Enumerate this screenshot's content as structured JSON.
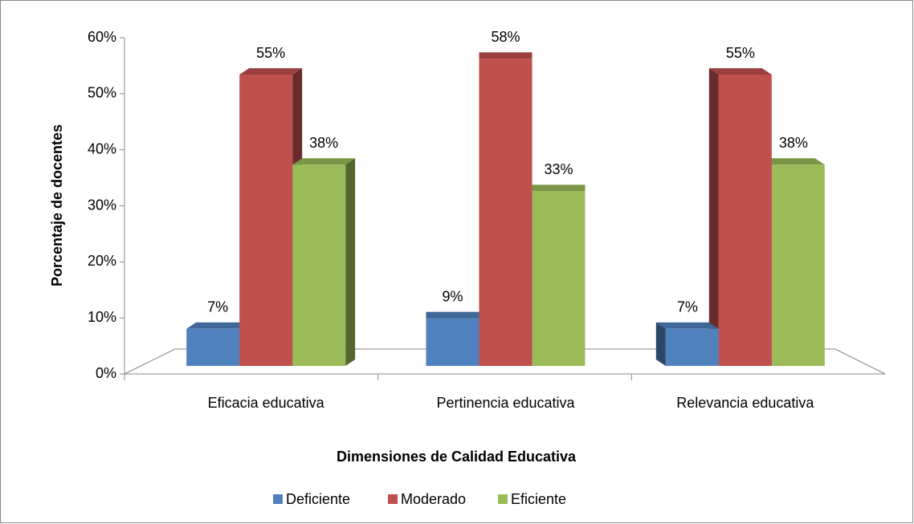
{
  "chart_data": {
    "type": "bar3d",
    "categories": [
      "Eficacia educativa",
      "Pertinencia educativa",
      "Relevancia educativa"
    ],
    "series": [
      {
        "name": "Deficiente",
        "color": "#4f81bd",
        "values": [
          7,
          9,
          7
        ],
        "value_labels": [
          "7%",
          "9%",
          "7%"
        ]
      },
      {
        "name": "Moderado",
        "color": "#c0504d",
        "values": [
          55,
          58,
          55
        ],
        "value_labels": [
          "55%",
          "58%",
          "55%"
        ]
      },
      {
        "name": "Eficiente",
        "color": "#9bbb59",
        "values": [
          38,
          33,
          38
        ],
        "value_labels": [
          "38%",
          "33%",
          "38%"
        ]
      }
    ],
    "xlabel": "Dimensiones de Calidad Educativa",
    "ylabel": "Porcentaje de docentes",
    "ylim": [
      0,
      60
    ],
    "yticks": [
      {
        "value": 0,
        "label": "0%"
      },
      {
        "value": 10,
        "label": "10%"
      },
      {
        "value": 20,
        "label": "20%"
      },
      {
        "value": 30,
        "label": "30%"
      },
      {
        "value": 40,
        "label": "40%"
      },
      {
        "value": 50,
        "label": "50%"
      },
      {
        "value": 60,
        "label": "60%"
      }
    ],
    "legend": "bottom"
  }
}
